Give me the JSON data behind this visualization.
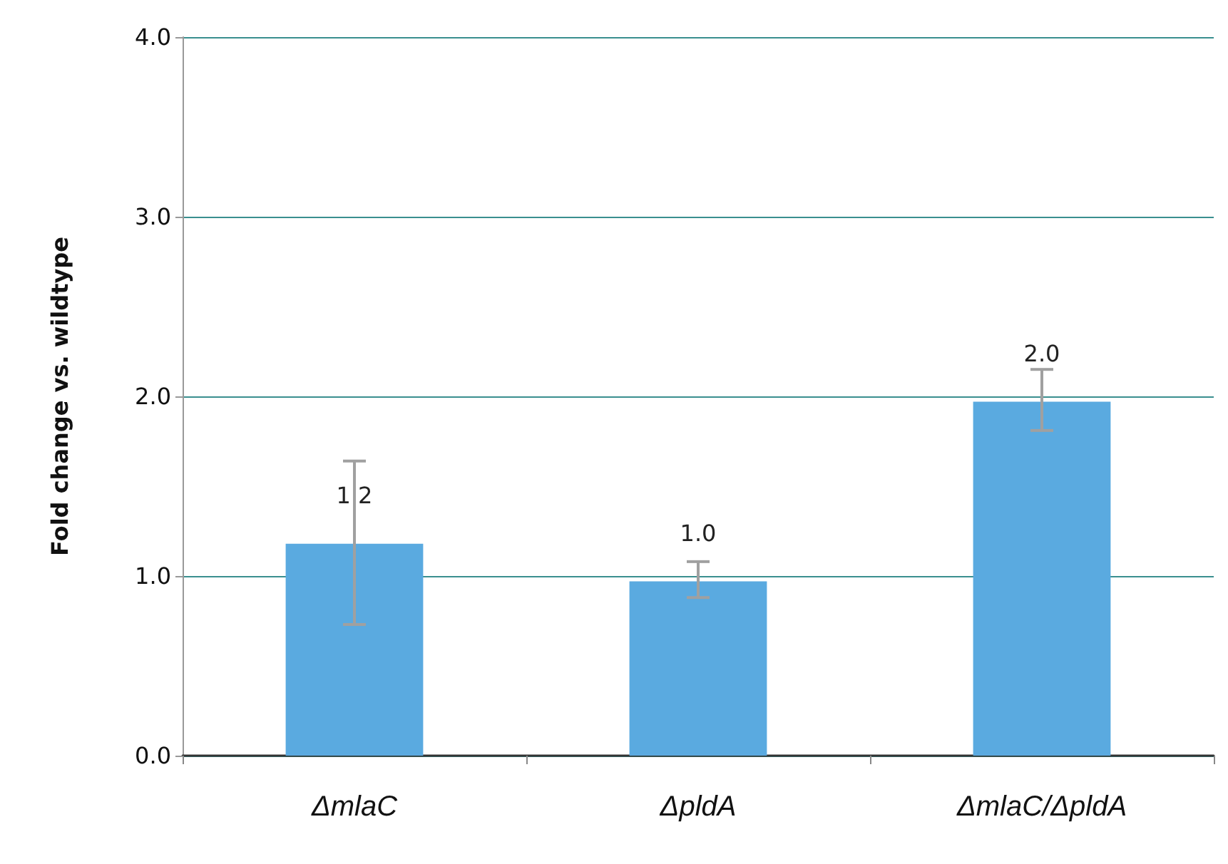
{
  "chart_data": {
    "type": "bar",
    "ylabel": "Fold change vs. wildtype",
    "categories": [
      "ΔmlaC",
      "ΔpldA",
      "ΔmlaC/ΔpldA"
    ],
    "values": [
      1.18,
      0.97,
      1.97
    ],
    "color": "#5aaae0",
    "errors": [
      [
        0.73,
        1.64
      ],
      [
        0.88,
        1.08
      ],
      [
        1.81,
        2.15
      ]
    ],
    "value_labels": [
      "1.2",
      "1.0",
      "2.0"
    ],
    "ylim": [
      0,
      4
    ],
    "yticks": [
      {
        "value": 0,
        "label": "0.0"
      },
      {
        "value": 1,
        "label": "1.0"
      },
      {
        "value": 2,
        "label": "2.0"
      },
      {
        "value": 3,
        "label": "3.0"
      },
      {
        "value": 4,
        "label": "4.0"
      }
    ],
    "grid": "y"
  }
}
